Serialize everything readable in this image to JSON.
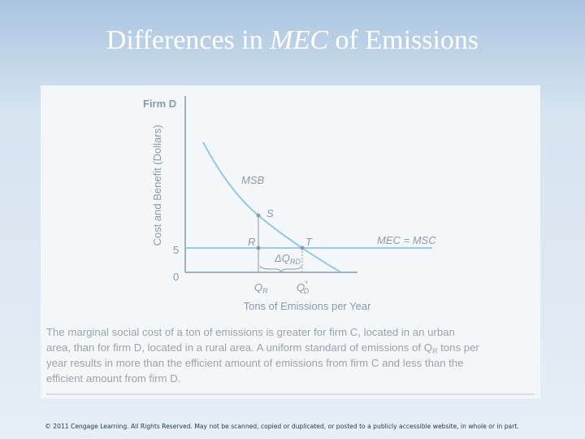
{
  "title": {
    "before": "Differences in ",
    "italic": "MEC",
    "after": " of Emissions"
  },
  "diagram": {
    "firm": "Firm D",
    "y_axis_label": "Cost and Benefit (Dollars)",
    "x_axis_label": "Tons of Emissions per Year",
    "curve_msb": "MSB",
    "line_mec": "MEC = MSC",
    "point_s": "S",
    "point_r": "R",
    "point_t": "T",
    "delta": {
      "main": "ΔQ",
      "sub": "RD"
    },
    "y_tick_5": "5",
    "y_tick_0": "0",
    "q_r": {
      "main": "Q",
      "sub": "R"
    },
    "q_d": {
      "main": "Q",
      "sub": "D",
      "sup": "*"
    }
  },
  "caption": {
    "line_0": "The marginal social cost of a ton of emissions is greater for firm C, located in an urban",
    "line_1": {
      "before": "area, than for firm D, located in a rural area. A uniform standard of emissions of Q",
      "sub": "R",
      "after": " tons per"
    },
    "line_2": "year results in more than the efficient amount of emissions from firm C and less than the",
    "line_3": "efficient amount from firm D."
  },
  "footer": "© 2011 Cengage Learning. All Rights Reserved. May not be scanned, copied or duplicated, or posted to a publicly accessible website, in whole or in part."
}
